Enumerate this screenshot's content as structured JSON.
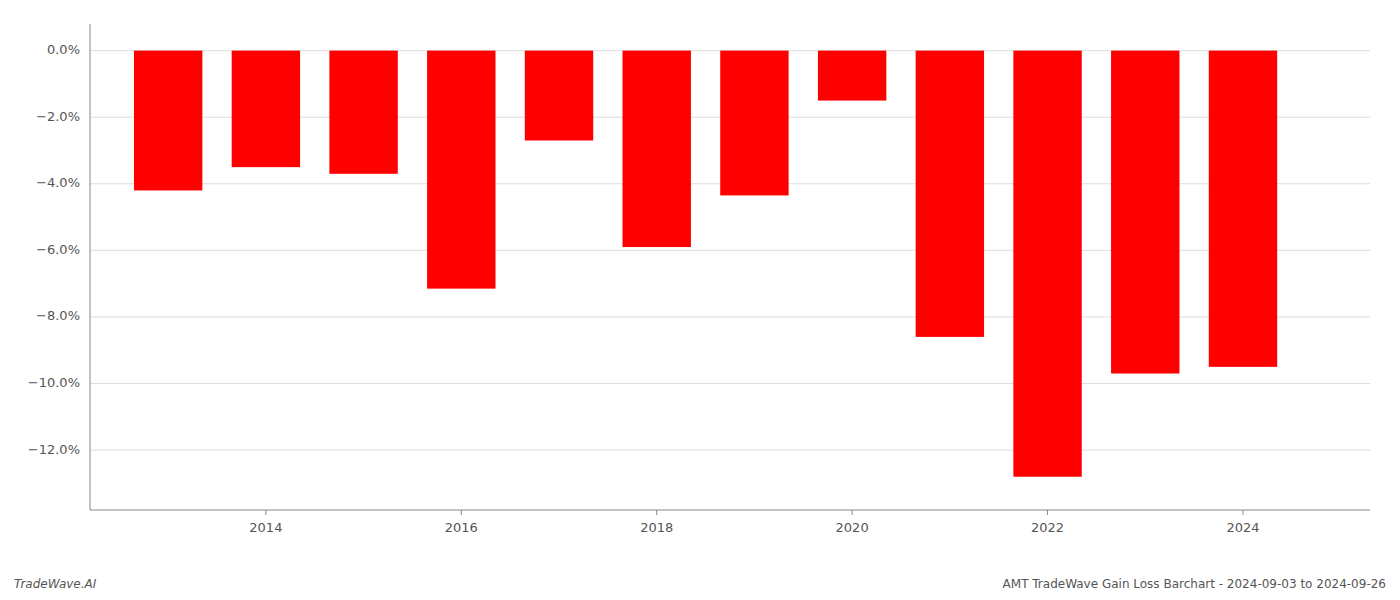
{
  "chart_data": {
    "type": "bar",
    "x": [
      2013,
      2014,
      2015,
      2016,
      2017,
      2018,
      2019,
      2020,
      2021,
      2022,
      2023,
      2024
    ],
    "values": [
      -4.2,
      -3.5,
      -3.7,
      -7.15,
      -2.7,
      -5.9,
      -4.35,
      -1.5,
      -8.6,
      -12.8,
      -9.7,
      -9.5
    ],
    "color": "#ff0000",
    "xlim": [
      2012.2,
      2025.3
    ],
    "xticks": [
      2014,
      2016,
      2018,
      2020,
      2022,
      2024
    ],
    "ylim": [
      -13.8,
      0.8
    ],
    "yticks": [
      {
        "value": 0.0,
        "label": "0.0%"
      },
      {
        "value": -2.0,
        "label": "−2.0%"
      },
      {
        "value": -4.0,
        "label": "−4.0%"
      },
      {
        "value": -6.0,
        "label": "−6.0%"
      },
      {
        "value": -8.0,
        "label": "−8.0%"
      },
      {
        "value": -10.0,
        "label": "−10.0%"
      },
      {
        "value": -12.0,
        "label": "−12.0%"
      }
    ],
    "grid": true,
    "annotations": [
      "TradeWave.AI",
      "AMT TradeWave Gain Loss Barchart - 2024-09-03 to 2024-09-26"
    ]
  }
}
